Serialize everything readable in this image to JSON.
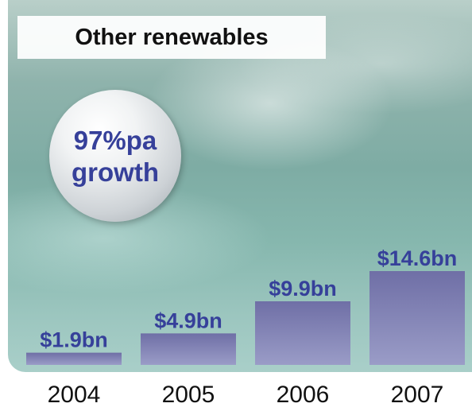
{
  "colors": {
    "bar_fill": "#7b7fb3",
    "label_color": "#36409a",
    "background": "#8fb8b1"
  },
  "bubble": {
    "line1": "97%pa",
    "line2": "growth"
  },
  "chart_data": {
    "type": "bar",
    "title": "Other renewables",
    "categories": [
      "2004",
      "2005",
      "2006",
      "2007"
    ],
    "values": [
      1.9,
      4.9,
      9.9,
      14.6
    ],
    "data_labels": [
      "$1.9bn",
      "$4.9bn",
      "$9.9bn",
      "$14.6bn"
    ],
    "xlabel": "",
    "ylabel": "",
    "ylim": [
      0,
      14.6
    ],
    "grid": false
  }
}
